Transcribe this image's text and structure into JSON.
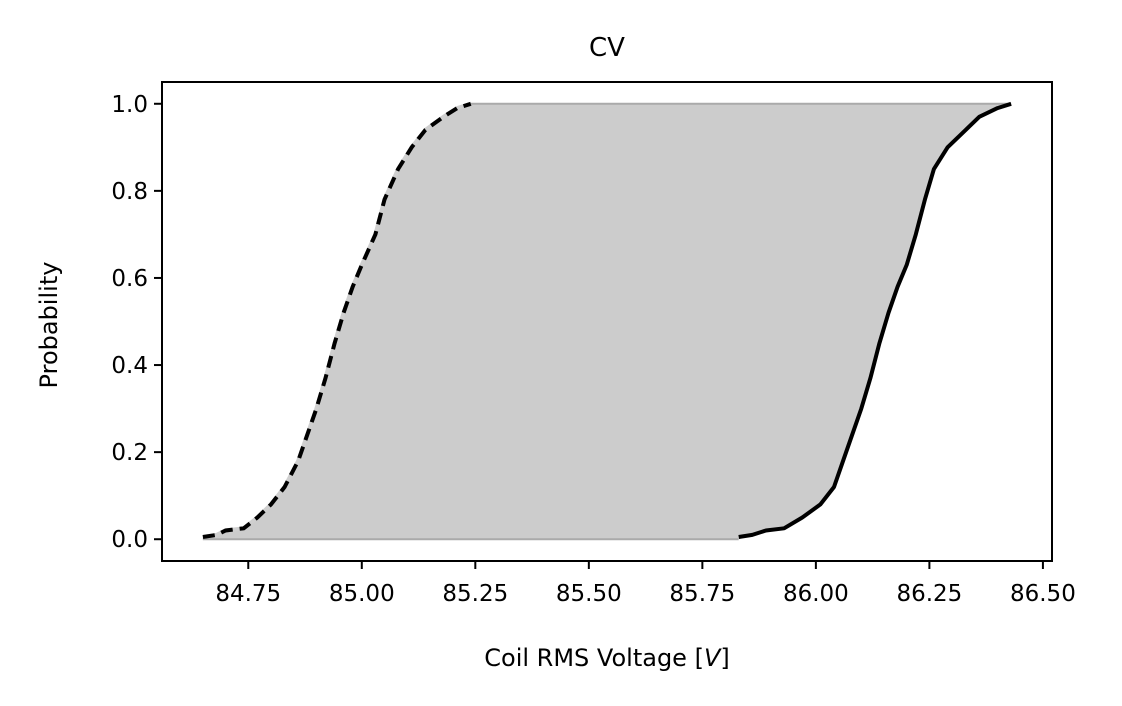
{
  "chart_data": {
    "type": "area",
    "title": "CV",
    "xlabel_prefix": "Coil RMS Voltage [",
    "xlabel_var": "V",
    "xlabel_suffix": "]",
    "ylabel": "Probability",
    "xlim": [
      84.56,
      86.52
    ],
    "ylim": [
      -0.05,
      1.05
    ],
    "xticks": [
      84.75,
      85.0,
      85.25,
      85.5,
      85.75,
      86.0,
      86.25,
      86.5
    ],
    "xtick_labels": [
      "84.75",
      "85.00",
      "85.25",
      "85.50",
      "85.75",
      "86.00",
      "86.25",
      "86.50"
    ],
    "yticks": [
      0.0,
      0.2,
      0.4,
      0.6,
      0.8,
      1.0
    ],
    "ytick_labels": [
      "0.0",
      "0.2",
      "0.4",
      "0.6",
      "0.8",
      "1.0"
    ],
    "grid": false,
    "fill_color": "#cccccc",
    "band": {
      "lower_bound": {
        "style": "dashed",
        "x": [
          84.65,
          84.68,
          84.7,
          84.74,
          84.77,
          84.8,
          84.83,
          84.86,
          84.88,
          84.9,
          84.92,
          84.94,
          84.96,
          84.98,
          85.0,
          85.03,
          85.05,
          85.08,
          85.11,
          85.14,
          85.18,
          85.21,
          85.24
        ],
        "y": [
          0.005,
          0.01,
          0.02,
          0.025,
          0.05,
          0.08,
          0.12,
          0.18,
          0.24,
          0.3,
          0.37,
          0.45,
          0.52,
          0.58,
          0.63,
          0.7,
          0.78,
          0.85,
          0.9,
          0.94,
          0.97,
          0.99,
          1.0
        ]
      },
      "upper_bound": {
        "style": "solid",
        "x": [
          85.83,
          85.86,
          85.89,
          85.93,
          85.97,
          86.01,
          86.04,
          86.06,
          86.08,
          86.1,
          86.12,
          86.14,
          86.16,
          86.18,
          86.2,
          86.22,
          86.24,
          86.26,
          86.29,
          86.33,
          86.36,
          86.4,
          86.43
        ],
        "y": [
          0.005,
          0.01,
          0.02,
          0.025,
          0.05,
          0.08,
          0.12,
          0.18,
          0.24,
          0.3,
          0.37,
          0.45,
          0.52,
          0.58,
          0.63,
          0.7,
          0.78,
          0.85,
          0.9,
          0.94,
          0.97,
          0.99,
          1.0
        ]
      }
    }
  }
}
